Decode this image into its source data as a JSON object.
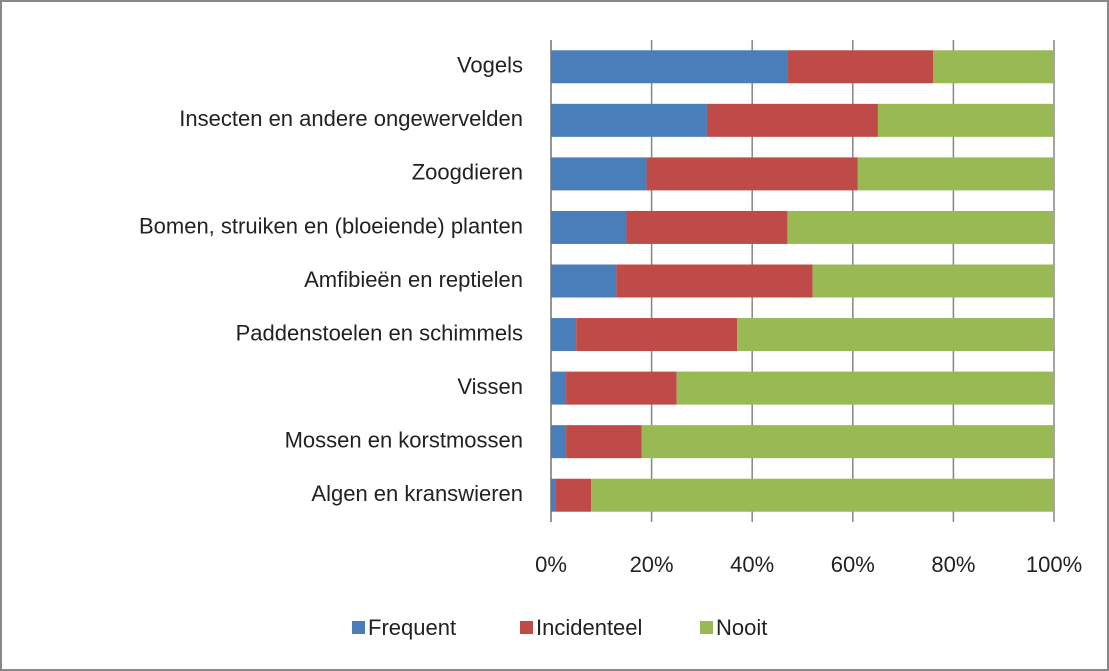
{
  "chart_data": {
    "type": "stacked_barh",
    "categories": [
      "Vogels",
      "Insecten en andere ongewervelden",
      "Zoogdieren",
      "Bomen, struiken en (bloeiende) planten",
      "Amfibieën en reptielen",
      "Paddenstoelen en schimmels",
      "Vissen",
      "Mossen en korstmossen",
      "Algen en kranswieren"
    ],
    "series": [
      {
        "name": "Frequent",
        "color": "#4a7ebb",
        "values": [
          47,
          31,
          19,
          15,
          13,
          5,
          3,
          3,
          1
        ]
      },
      {
        "name": "Incidenteel",
        "color": "#be4b48",
        "values": [
          29,
          34,
          42,
          32,
          39,
          32,
          22,
          15,
          7
        ]
      },
      {
        "name": "Nooit",
        "color": "#98b954",
        "values": [
          24,
          35,
          39,
          53,
          48,
          63,
          75,
          82,
          92
        ]
      }
    ],
    "xlim": [
      0,
      100
    ],
    "xticks": [
      {
        "value": 0,
        "label": "0%"
      },
      {
        "value": 20,
        "label": "20%"
      },
      {
        "value": 40,
        "label": "40%"
      },
      {
        "value": 60,
        "label": "60%"
      },
      {
        "value": 80,
        "label": "80%"
      },
      {
        "value": 100,
        "label": "100%"
      }
    ],
    "grid": true,
    "legend": "bottom"
  }
}
